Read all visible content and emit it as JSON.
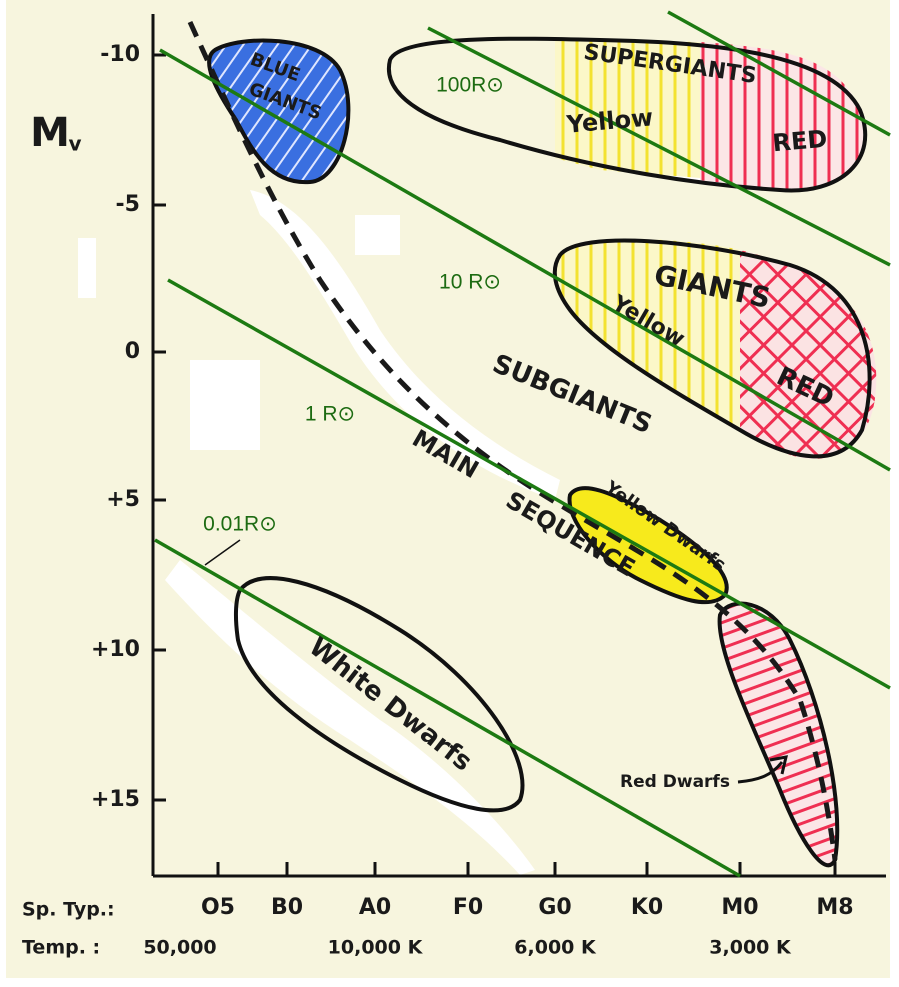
{
  "axes": {
    "y_label": "M",
    "y_label_sub": "v",
    "y_ticks": [
      "-10",
      "-5",
      "0",
      "+5",
      "+10",
      "+15"
    ],
    "x_row_label": "Sp. Typ.:",
    "spectral_types": [
      "O5",
      "B0",
      "A0",
      "F0",
      "G0",
      "K0",
      "M0",
      "M8"
    ],
    "temp_row_label": "Temp. :",
    "temperatures": [
      "50,000",
      "10,000 K",
      "6,000 K",
      "3,000 K"
    ]
  },
  "regions": {
    "blue_giants": [
      "BLUE",
      "GIANTS"
    ],
    "supergiants": "SUPERGIANTS",
    "supergiants_yellow": "Yellow",
    "supergiants_red": "RED",
    "giants": "GIANTS",
    "giants_yellow": "Yellow",
    "giants_red": "RED",
    "subgiants": "SUBGIANTS",
    "main_sequence": [
      "MAIN",
      "SEQUENCE"
    ],
    "yellow_dwarfs": "Yellow Dwarfs",
    "white_dwarfs": "White Dwarfs",
    "red_dwarfs": "Red Dwarfs"
  },
  "radius_lines": [
    "100R⊙",
    "10 R⊙",
    "1 R⊙",
    "0.01R⊙"
  ]
}
